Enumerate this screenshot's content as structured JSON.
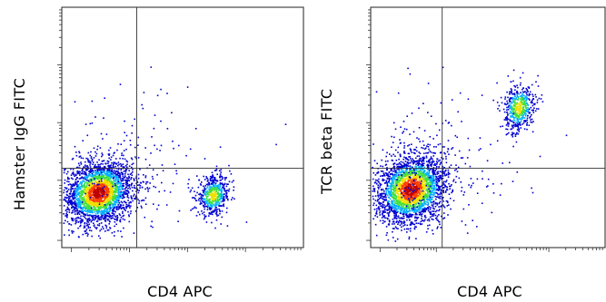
{
  "chart_data": [
    {
      "type": "scatter",
      "title": "",
      "xlabel": "CD4 APC",
      "ylabel": "Hamster IgG FITC",
      "x_scale": "log",
      "y_scale": "log",
      "gate_lines": true,
      "populations": [
        {
          "name": "",
          "x_center": 0.15,
          "y_center": 0.23,
          "spread_x": 0.07,
          "spread_y": 0.065,
          "count": 2600,
          "density": "high"
        },
        {
          "name": "",
          "x_center": 0.625,
          "y_center": 0.22,
          "spread_x": 0.035,
          "spread_y": 0.04,
          "count": 550,
          "density": "medium"
        }
      ],
      "scatter_noise": 220,
      "quadrant_x": 0.31,
      "quadrant_y": 0.33
    },
    {
      "type": "scatter",
      "title": "",
      "xlabel": "CD4 APC",
      "ylabel": "TCR beta FITC",
      "x_scale": "log",
      "y_scale": "log",
      "gate_lines": true,
      "populations": [
        {
          "name": "",
          "x_center": 0.17,
          "y_center": 0.245,
          "spread_x": 0.075,
          "spread_y": 0.07,
          "count": 2600,
          "density": "high"
        },
        {
          "name": "",
          "x_center": 0.63,
          "y_center": 0.585,
          "spread_x": 0.035,
          "spread_y": 0.05,
          "count": 500,
          "density": "medium"
        }
      ],
      "scatter_noise": 260,
      "quadrant_x": 0.305,
      "quadrant_y": 0.33
    }
  ],
  "colors": {
    "low": "#0000d0",
    "mid_low": "#00b0ff",
    "mid": "#40e040",
    "mid_high": "#f0e000",
    "high": "#ff4000",
    "peak": "#c00000"
  }
}
